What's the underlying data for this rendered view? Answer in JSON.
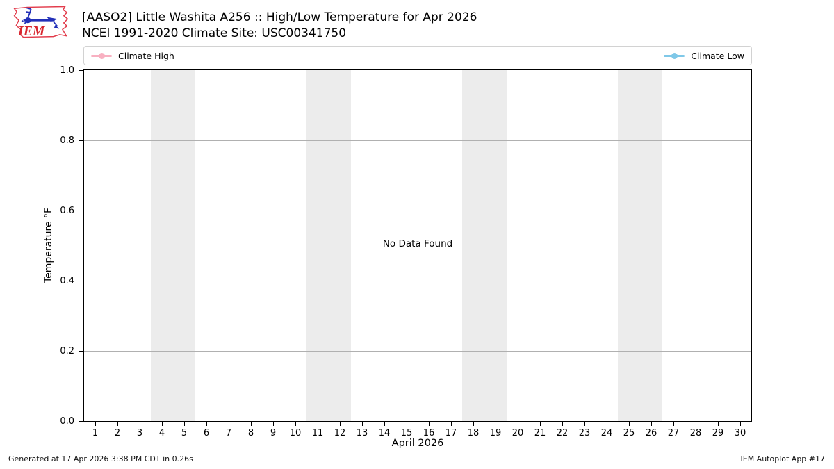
{
  "header": {
    "logo_text": "IEM",
    "title_line1": "[AASO2] Little Washita A256 :: High/Low Temperature for Apr 2026",
    "title_line2": "NCEI 1991-2020 Climate Site: USC00341750"
  },
  "legend": {
    "items": [
      {
        "label": "Climate High",
        "color": "#f8b0c1"
      },
      {
        "label": "Climate Low",
        "color": "#7fc8e8"
      }
    ]
  },
  "chart_data": {
    "type": "line",
    "title": "[AASO2] Little Washita A256 :: High/Low Temperature for Apr 2026",
    "subtitle": "NCEI 1991-2020 Climate Site: USC00341750",
    "xlabel": "April 2026",
    "ylabel": "Temperature °F",
    "xlim": [
      0.5,
      30.5
    ],
    "ylim": [
      0.0,
      1.0
    ],
    "x_ticks": [
      1,
      2,
      3,
      4,
      5,
      6,
      7,
      8,
      9,
      10,
      11,
      12,
      13,
      14,
      15,
      16,
      17,
      18,
      19,
      20,
      21,
      22,
      23,
      24,
      25,
      26,
      27,
      28,
      29,
      30
    ],
    "y_ticks": [
      "0.0",
      "0.2",
      "0.4",
      "0.6",
      "0.8",
      "1.0"
    ],
    "grid": true,
    "legend_position": "top-expanded",
    "series": [
      {
        "name": "Climate High",
        "color": "#f8b0c1",
        "x": [],
        "values": []
      },
      {
        "name": "Climate Low",
        "color": "#7fc8e8",
        "x": [],
        "values": []
      }
    ],
    "annotation": "No Data Found",
    "weekend_bands": [
      [
        3.5,
        5.5
      ],
      [
        10.5,
        12.5
      ],
      [
        17.5,
        19.5
      ],
      [
        24.5,
        26.5
      ]
    ],
    "band_color": "#ececec",
    "grid_color": "#b0b0b0"
  },
  "footer": {
    "left": "Generated at 17 Apr 2026 3:38 PM CDT in 0.26s",
    "right": "IEM Autoplot App #17"
  }
}
